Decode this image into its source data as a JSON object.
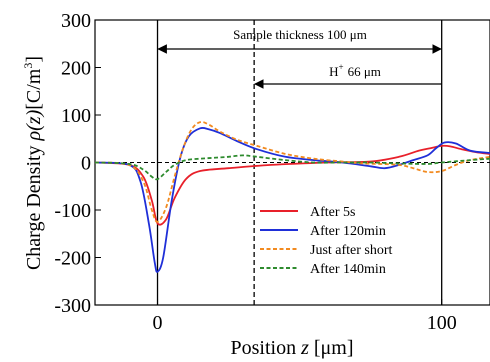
{
  "chart_data": {
    "type": "line",
    "title": "",
    "xlabel": "Position",
    "xlabel_var": "z",
    "xlabel_unit": "[μm]",
    "ylabel": "Charge Density",
    "ylabel_var": "ρ(z)",
    "ylabel_unit": "[C/m",
    "ylabel_unit_sup": "3",
    "ylabel_unit_close": "]",
    "xlim": [
      -22,
      117
    ],
    "ylim": [
      -300,
      300
    ],
    "x_ticks": [
      0,
      100
    ],
    "y_ticks": [
      -300,
      -200,
      -100,
      0,
      100,
      200,
      300
    ],
    "x_tick_labels": [
      "0",
      "100"
    ],
    "y_tick_labels": [
      "-300",
      "-200",
      "-100",
      "0",
      "100",
      "200",
      "300"
    ],
    "grid": false,
    "legend_position": "lower-right",
    "annotations": {
      "sample_thickness": "Sample thickness 100 μm",
      "hplus_label": "H",
      "hplus_sup": "+",
      "hplus_value": "66 μm",
      "sample_start_x": 0,
      "sample_end_x": 100,
      "hplus_front_x": 34
    },
    "series": [
      {
        "name": "After 5s",
        "color": "#e8202a",
        "dash": "solid",
        "x": [
          -22,
          -10,
          -5,
          -2,
          0,
          3,
          6,
          10,
          15,
          25,
          40,
          60,
          75,
          85,
          92,
          96,
          100,
          103,
          107,
          112,
          117
        ],
        "y": [
          0,
          -5,
          -30,
          -80,
          -128,
          -120,
          -75,
          -35,
          -18,
          -12,
          -5,
          0,
          2,
          12,
          25,
          30,
          35,
          34,
          28,
          22,
          18
        ]
      },
      {
        "name": "After 120min",
        "color": "#1f2fd8",
        "dash": "solid",
        "x": [
          -22,
          -10,
          -6,
          -3,
          -1,
          0,
          2,
          5,
          8,
          11,
          15,
          18,
          22,
          28,
          35,
          45,
          55,
          65,
          75,
          80,
          85,
          90,
          95,
          98,
          101,
          105,
          110,
          117
        ],
        "y": [
          0,
          -5,
          -40,
          -130,
          -210,
          -230,
          -200,
          -80,
          10,
          55,
          72,
          70,
          62,
          45,
          28,
          12,
          5,
          0,
          -8,
          -12,
          -5,
          5,
          15,
          30,
          42,
          40,
          25,
          20
        ]
      },
      {
        "name": "Just after short",
        "color": "#f28a1f",
        "dash": "dashed",
        "x": [
          -22,
          -10,
          -5,
          -2,
          0,
          3,
          6,
          9,
          12,
          15,
          18,
          22,
          28,
          35,
          45,
          55,
          65,
          72,
          78,
          85,
          90,
          95,
          100,
          105,
          110,
          117
        ],
        "y": [
          0,
          -5,
          -40,
          -100,
          -125,
          -95,
          -30,
          30,
          70,
          85,
          80,
          65,
          48,
          35,
          18,
          8,
          2,
          -2,
          -3,
          -5,
          -12,
          -20,
          -18,
          -5,
          5,
          12
        ]
      },
      {
        "name": "After 140min",
        "color": "#2e8b2e",
        "dash": "dashed",
        "x": [
          -22,
          -10,
          -5,
          -2,
          0,
          3,
          6,
          10,
          15,
          20,
          25,
          30,
          35,
          45,
          55,
          65,
          75,
          85,
          95,
          100,
          110,
          117
        ],
        "y": [
          0,
          -3,
          -15,
          -30,
          -35,
          -20,
          -5,
          5,
          8,
          10,
          12,
          15,
          12,
          5,
          0,
          0,
          0,
          -2,
          -3,
          0,
          5,
          8
        ]
      }
    ]
  }
}
